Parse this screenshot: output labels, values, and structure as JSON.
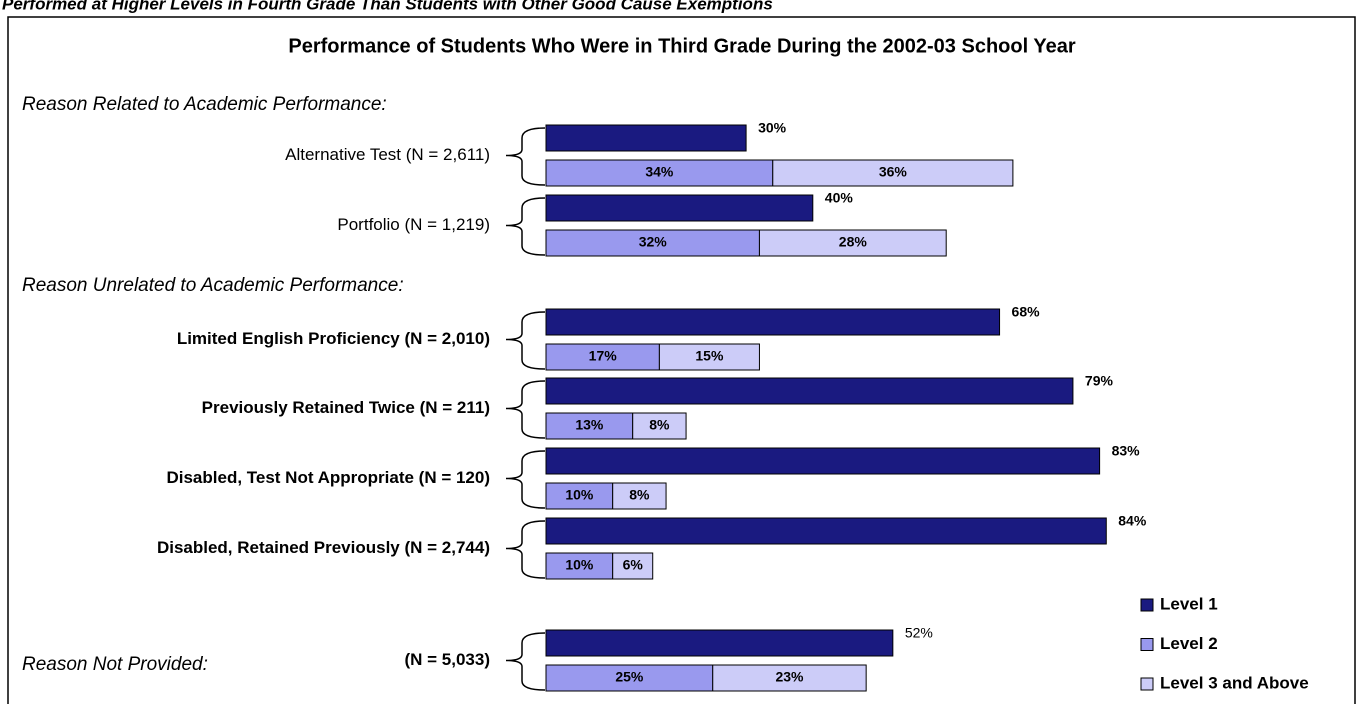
{
  "chart_data": {
    "type": "bar",
    "page_title": "Performed at Higher Levels in Fourth Grade Than Students with Other Good Cause Exemptions",
    "title": "Performance of Students Who Were in Third Grade During the 2002-03 School Year",
    "section_headings": [
      "Reason Related to Academic Performance:",
      "Reason Unrelated to Academic Performance:",
      "Reason Not Provided:"
    ],
    "categories": [
      "Alternative Test (N = 2,611)",
      "Portfolio (N = 1,219)",
      "Limited English Proficiency (N = 2,010)",
      "Previously Retained Twice (N = 211)",
      "Disabled, Test Not Appropriate (N = 120)",
      "Disabled, Retained Previously (N = 2,744)",
      "(N = 5,033)"
    ],
    "xlim": [
      0,
      100
    ],
    "series": [
      {
        "name": "Level 1",
        "color": "#1a1a80",
        "values": [
          30,
          40,
          68,
          79,
          83,
          84,
          52
        ],
        "value_labels": [
          "30%",
          "40%",
          "68%",
          "79%",
          "83%",
          "84%",
          "52%"
        ]
      },
      {
        "name": "Level 2",
        "color": "#9999ee",
        "values": [
          34,
          32,
          17,
          13,
          10,
          10,
          25
        ],
        "value_labels": [
          "34%",
          "32%",
          "17%",
          "13%",
          "10%",
          "10%",
          "25%"
        ]
      },
      {
        "name": "Level 3 and Above",
        "color": "#ccccf8",
        "values": [
          36,
          28,
          15,
          8,
          8,
          6,
          23
        ],
        "value_labels": [
          "36%",
          "28%",
          "15%",
          "8%",
          "8%",
          "6%",
          "23%"
        ]
      }
    ],
    "legend": "bottom-right"
  }
}
